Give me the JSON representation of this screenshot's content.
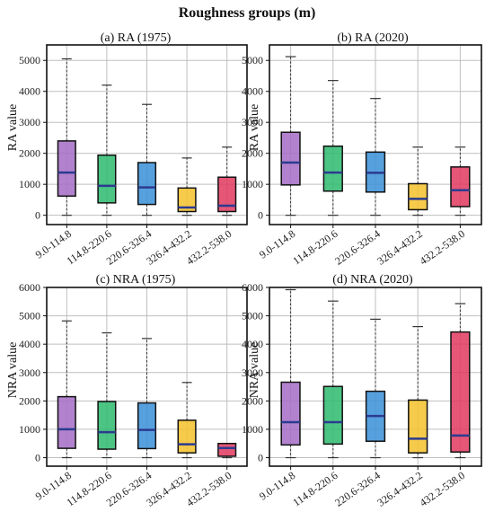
{
  "suptitle": "Roughness groups (m)",
  "chart_data": [
    {
      "type": "box",
      "title": "(a) RA (1975)",
      "ylabel": "RA value",
      "categories": [
        "9.0-114.8",
        "114.8-220.6",
        "220.6-326.4",
        "326.4-432.2",
        "432.2-538.0"
      ],
      "ylim": [
        -300,
        5500
      ],
      "yticks": [
        0,
        1000,
        2000,
        3000,
        4000,
        5000
      ],
      "boxes": [
        {
          "min": 0,
          "q1": 620,
          "median": 1380,
          "q3": 2400,
          "max": 5050
        },
        {
          "min": 0,
          "q1": 400,
          "median": 950,
          "q3": 1940,
          "max": 4200
        },
        {
          "min": 0,
          "q1": 350,
          "median": 900,
          "q3": 1700,
          "max": 3580
        },
        {
          "min": 0,
          "q1": 120,
          "median": 250,
          "q3": 880,
          "max": 1850
        },
        {
          "min": 0,
          "q1": 120,
          "median": 310,
          "q3": 1230,
          "max": 2200
        }
      ]
    },
    {
      "type": "box",
      "title": "(b) RA (2020)",
      "ylabel": "RA value",
      "categories": [
        "9.0-114.8",
        "114.8-220.6",
        "220.6-326.4",
        "326.4-432.2",
        "432.2-538.0"
      ],
      "ylim": [
        -300,
        5500
      ],
      "yticks": [
        0,
        1000,
        2000,
        3000,
        4000,
        5000
      ],
      "boxes": [
        {
          "min": 0,
          "q1": 980,
          "median": 1700,
          "q3": 2680,
          "max": 5120
        },
        {
          "min": 0,
          "q1": 780,
          "median": 1380,
          "q3": 2230,
          "max": 4350
        },
        {
          "min": 0,
          "q1": 750,
          "median": 1370,
          "q3": 2040,
          "max": 3770
        },
        {
          "min": 0,
          "q1": 180,
          "median": 530,
          "q3": 1020,
          "max": 2200
        },
        {
          "min": 0,
          "q1": 280,
          "median": 810,
          "q3": 1560,
          "max": 2200
        }
      ]
    },
    {
      "type": "box",
      "title": "(c) NRA (1975)",
      "ylabel": "NRA value",
      "categories": [
        "9.0-114.8",
        "114.8-220.6",
        "220.6-326.4",
        "326.4-432.2",
        "432.2-538.0"
      ],
      "ylim": [
        -300,
        6000
      ],
      "yticks": [
        0,
        1000,
        2000,
        3000,
        4000,
        5000,
        6000
      ],
      "boxes": [
        {
          "min": 0,
          "q1": 330,
          "median": 1000,
          "q3": 2150,
          "max": 4820
        },
        {
          "min": 0,
          "q1": 300,
          "median": 900,
          "q3": 1980,
          "max": 4400
        },
        {
          "min": 0,
          "q1": 320,
          "median": 980,
          "q3": 1930,
          "max": 4200
        },
        {
          "min": 0,
          "q1": 170,
          "median": 470,
          "q3": 1320,
          "max": 2650
        },
        {
          "min": 0,
          "q1": 50,
          "median": 340,
          "q3": 500,
          "max": 500
        }
      ]
    },
    {
      "type": "box",
      "title": "(d) NRA (2020)",
      "ylabel": "NRA value",
      "categories": [
        "9.0-114.8",
        "114.8-220.6",
        "220.6-326.4",
        "326.4-432.2",
        "432.2-538.0"
      ],
      "ylim": [
        -300,
        6000
      ],
      "yticks": [
        0,
        1000,
        2000,
        3000,
        4000,
        5000,
        6000
      ],
      "boxes": [
        {
          "min": 0,
          "q1": 450,
          "median": 1250,
          "q3": 2660,
          "max": 5920
        },
        {
          "min": 0,
          "q1": 480,
          "median": 1250,
          "q3": 2510,
          "max": 5520
        },
        {
          "min": 0,
          "q1": 580,
          "median": 1470,
          "q3": 2340,
          "max": 4880
        },
        {
          "min": 0,
          "q1": 170,
          "median": 670,
          "q3": 2030,
          "max": 4620
        },
        {
          "min": 0,
          "q1": 200,
          "median": 780,
          "q3": 4430,
          "max": 5430
        }
      ]
    }
  ],
  "colors": {
    "fills": [
      "#a46cc6",
      "#2dba6e",
      "#3a8fd8",
      "#f5c12a",
      "#e0385f"
    ],
    "median": "#2b3b8f",
    "whisker": "#333333",
    "grid": "#bfbfbf",
    "frame": "#111111"
  }
}
